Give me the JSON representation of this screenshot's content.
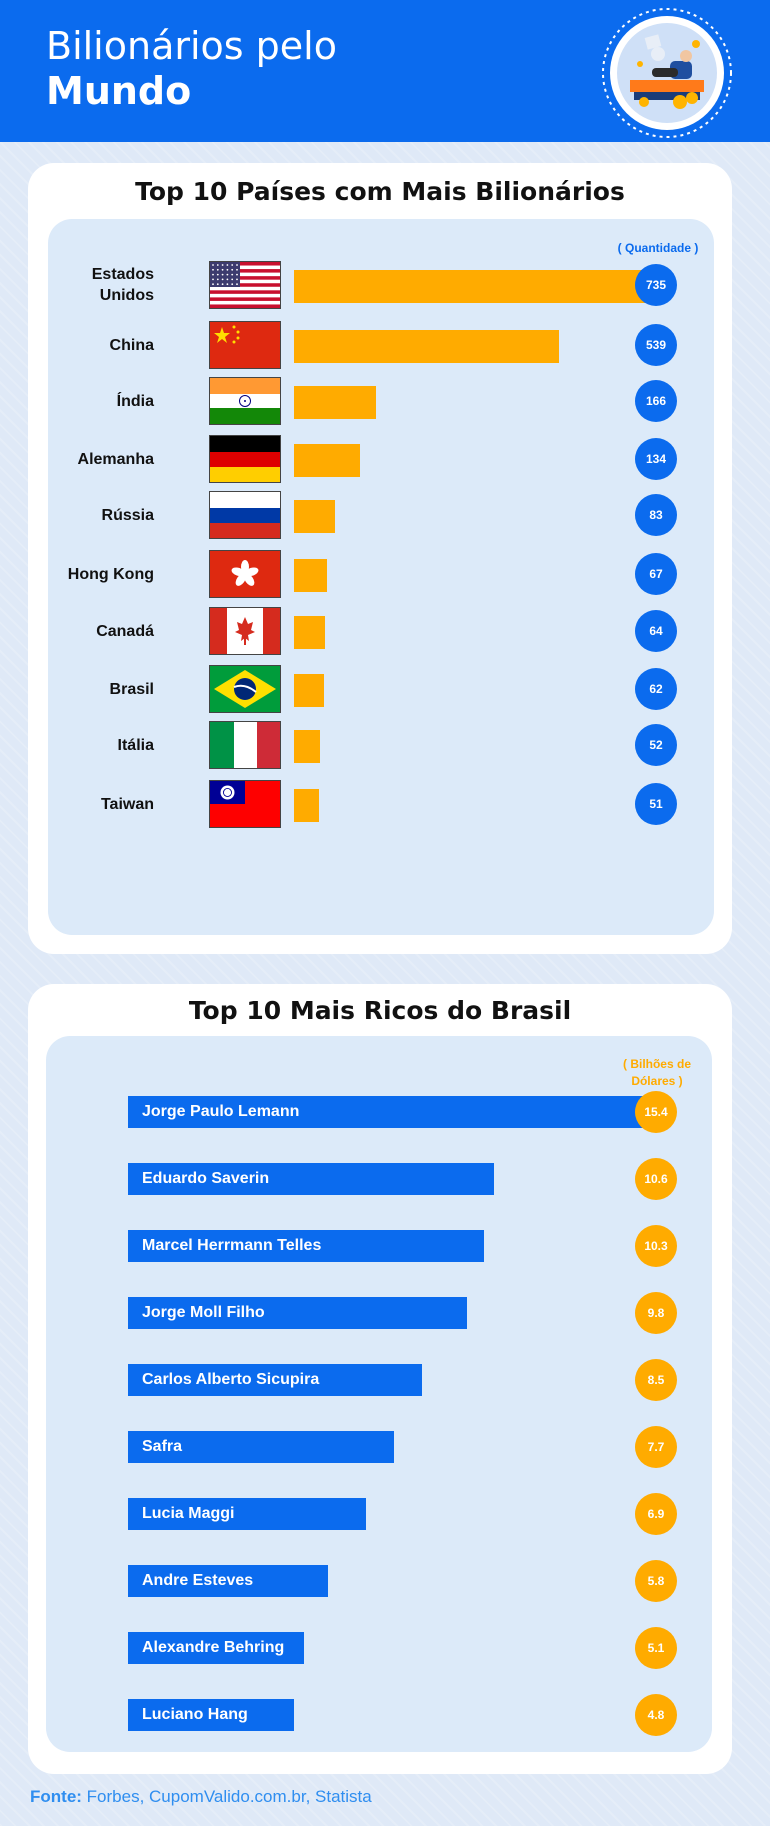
{
  "header": {
    "title_line1": "Bilionários pelo",
    "title_line2": "Mundo"
  },
  "colors": {
    "brand_blue": "#0b6bee",
    "accent_orange": "#ffab00",
    "panel_bg": "#dceaf9"
  },
  "countries_section": {
    "title": "Top 10 Países com Mais Bilionários",
    "unit_label": "( Quantidade )"
  },
  "people_section": {
    "title": "Top 10 Mais Ricos do Brasil",
    "unit_label_line1": "( Bilhões de",
    "unit_label_line2": "Dólares )"
  },
  "source": {
    "prefix": "Fonte:",
    "text": "Forbes, CupomValido.com.br, Statista"
  },
  "chart_data": [
    {
      "type": "bar",
      "title": "Top 10 Países com Mais Bilionários",
      "categories": [
        "Estados Unidos",
        "China",
        "Índia",
        "Alemanha",
        "Rússia",
        "Hong Kong",
        "Canadá",
        "Brasil",
        "Itália",
        "Taiwan"
      ],
      "category_lines": [
        [
          "Estados",
          "Unidos"
        ],
        [
          "China"
        ],
        [
          "Índia"
        ],
        [
          "Alemanha"
        ],
        [
          "Rússia"
        ],
        [
          "Hong Kong"
        ],
        [
          "Canadá"
        ],
        [
          "Brasil"
        ],
        [
          "Itália"
        ],
        [
          "Taiwan"
        ]
      ],
      "flags": [
        "us-flag-icon",
        "china-flag-icon",
        "india-flag-icon",
        "germany-flag-icon",
        "russia-flag-icon",
        "hong-kong-flag-icon",
        "canada-flag-icon",
        "brazil-flag-icon",
        "italy-flag-icon",
        "taiwan-flag-icon"
      ],
      "values": [
        735,
        539,
        166,
        134,
        83,
        67,
        64,
        62,
        52,
        51
      ],
      "value_labels": [
        "735",
        "539",
        "166",
        "134",
        "83",
        "67",
        "64",
        "62",
        "52",
        "51"
      ],
      "unit": "( Quantidade )",
      "bar_color": "#ffab00",
      "grid": false
    },
    {
      "type": "bar",
      "title": "Top 10 Mais Ricos do Brasil",
      "categories": [
        "Jorge Paulo Lemann",
        "Eduardo Saverin",
        "Marcel Herrmann Telles",
        "Jorge Moll Filho",
        "Carlos Alberto Sicupira",
        "Safra",
        "Lucia Maggi",
        "Andre Esteves",
        "Alexandre Behring",
        "Luciano Hang"
      ],
      "values": [
        15.4,
        10.6,
        10.3,
        9.8,
        8.5,
        7.7,
        6.9,
        5.8,
        5.1,
        4.8
      ],
      "value_labels": [
        "15.4",
        "10.6",
        "10.3",
        "9.8",
        "8.5",
        "7.7",
        "6.9",
        "5.8",
        "5.1",
        "4.8"
      ],
      "unit": "( Bilhões de Dólares )",
      "bar_color": "#0b6bee",
      "grid": false
    }
  ]
}
